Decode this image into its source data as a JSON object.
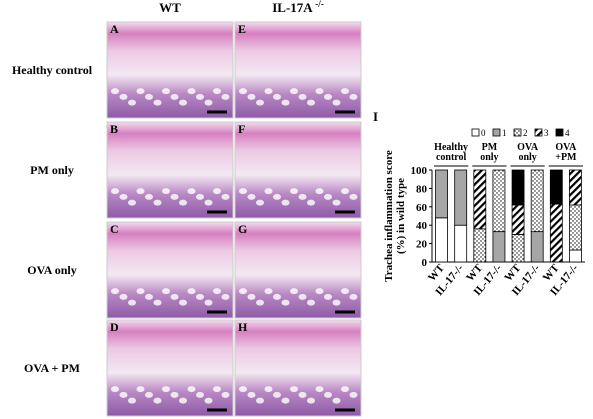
{
  "panels": {
    "column_headers": [
      {
        "text": "WT"
      },
      {
        "text": "IL-17A",
        "sup": "-/-"
      }
    ],
    "row_labels": [
      "Healthy control",
      "PM only",
      "OVA only",
      "OVA + PM"
    ],
    "letters": [
      [
        "A",
        "E"
      ],
      [
        "B",
        "F"
      ],
      [
        "C",
        "G"
      ],
      [
        "D",
        "H"
      ]
    ]
  },
  "chart_data": {
    "type": "stacked_bar",
    "panel_label": "I",
    "ylabel": [
      "Trachea inflammation score",
      "(%) in wild type"
    ],
    "categories": [
      "WT",
      "IL-17-/-",
      "WT",
      "IL-17-/-",
      "WT",
      "IL-17-/-",
      "WT",
      "IL-17-/-"
    ],
    "group_labels": [
      [
        "Healthy",
        "control"
      ],
      [
        "PM",
        "only"
      ],
      [
        "OVA",
        "only"
      ],
      [
        "OVA",
        "+PM"
      ]
    ],
    "series": [
      {
        "name": "0",
        "color": "#ffffff",
        "pattern": "none",
        "values": [
          48,
          40,
          0,
          0,
          0,
          0,
          0,
          13
        ]
      },
      {
        "name": "1",
        "color": "#a6a6a6",
        "pattern": "none",
        "values": [
          52,
          60,
          0,
          33,
          0,
          33,
          0,
          0
        ]
      },
      {
        "name": "2",
        "color": "#ffffff",
        "pattern": "dots",
        "values": [
          0,
          0,
          36,
          67,
          30,
          67,
          0,
          49
        ]
      },
      {
        "name": "3",
        "color": "#ffffff",
        "pattern": "hatch",
        "values": [
          0,
          0,
          64,
          0,
          32,
          0,
          63,
          38
        ]
      },
      {
        "name": "4",
        "color": "#000000",
        "pattern": "none",
        "values": [
          0,
          0,
          0,
          0,
          38,
          0,
          37,
          0
        ]
      }
    ],
    "ylim": [
      0,
      100
    ],
    "yticks": [
      0,
      20,
      40,
      60,
      80,
      100
    ],
    "legend": "top"
  }
}
